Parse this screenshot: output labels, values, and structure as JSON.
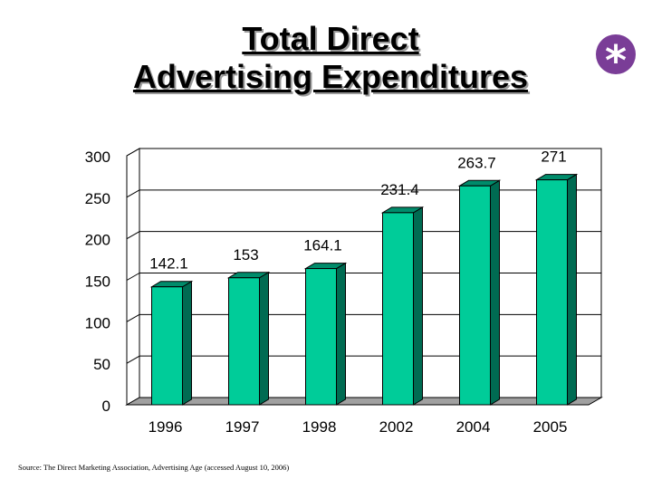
{
  "title_lines": [
    "Total Direct",
    "Advertising Expenditures"
  ],
  "badge_symbol": "*",
  "source": "Source: The Direct Marketing Association, Advertising Age (accessed August 10, 2006)",
  "colors": {
    "bar_front": "#00cc99",
    "bar_side": "#006b52",
    "bar_top": "#008c6b",
    "badge": "#7a3d97"
  },
  "chart_data": {
    "type": "bar",
    "title": "Total Direct Advertising Expenditures",
    "categories": [
      "1996",
      "1997",
      "1998",
      "2002",
      "2004",
      "2005"
    ],
    "values": [
      142.1,
      153,
      164.1,
      231.4,
      263.7,
      271
    ],
    "value_labels": [
      "142.1",
      "153",
      "164.1",
      "231.4",
      "263.7",
      "271"
    ],
    "yticks": [
      "0",
      "50",
      "100",
      "150",
      "200",
      "250",
      "300"
    ],
    "ylim": [
      0,
      300
    ],
    "grid": true,
    "legend": "none"
  }
}
